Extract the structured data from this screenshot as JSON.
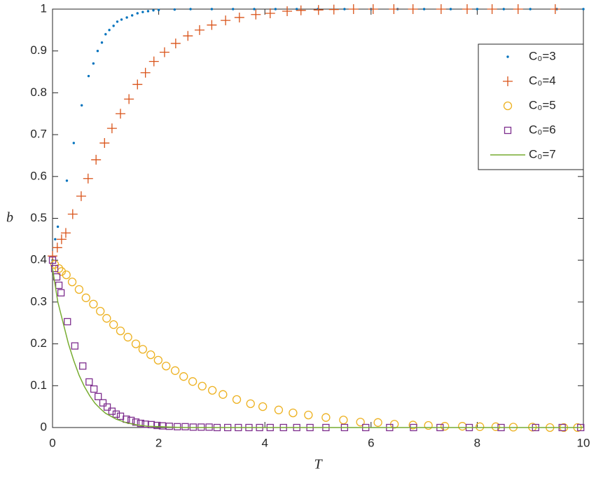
{
  "chart_data": {
    "type": "scatter",
    "xlabel": "T",
    "ylabel": "b",
    "xlim": [
      0,
      10
    ],
    "ylim": [
      0,
      1
    ],
    "xticks": [
      0,
      2,
      4,
      6,
      8,
      10
    ],
    "yticks": [
      0,
      0.1,
      0.2,
      0.3,
      0.4,
      0.5,
      0.6,
      0.7,
      0.8,
      0.9,
      1
    ],
    "legend": "upper-right",
    "series": [
      {
        "name": "C₀=3",
        "color": "#0072bd",
        "marker": "dot",
        "x": [
          0,
          0.05,
          0.1,
          0.27,
          0.4,
          0.55,
          0.68,
          0.77,
          0.85,
          0.93,
          1.0,
          1.07,
          1.15,
          1.22,
          1.3,
          1.4,
          1.5,
          1.6,
          1.7,
          1.8,
          1.9,
          2.0,
          2.3,
          2.6,
          3.0,
          3.4,
          3.8,
          4.2,
          4.6,
          5.0,
          5.5,
          6.0,
          6.5,
          7.0,
          7.5,
          8.0,
          8.5,
          9.0,
          9.5,
          10
        ],
        "values": [
          0.4,
          0.45,
          0.48,
          0.59,
          0.68,
          0.77,
          0.84,
          0.87,
          0.9,
          0.92,
          0.94,
          0.95,
          0.96,
          0.97,
          0.975,
          0.98,
          0.985,
          0.99,
          0.993,
          0.995,
          0.997,
          0.998,
          0.999,
          1,
          1,
          1,
          1,
          1,
          1,
          1,
          1,
          1,
          1,
          1,
          1,
          1,
          1,
          1,
          1,
          1
        ]
      },
      {
        "name": "C₀=4",
        "color": "#d95319",
        "marker": "plus",
        "x": [
          0,
          0.09,
          0.17,
          0.25,
          0.38,
          0.54,
          0.67,
          0.82,
          0.98,
          1.12,
          1.28,
          1.44,
          1.6,
          1.75,
          1.91,
          2.11,
          2.32,
          2.55,
          2.77,
          3.0,
          3.26,
          3.52,
          3.83,
          4.1,
          4.42,
          4.68,
          5.01,
          5.3,
          5.67,
          6.04,
          6.43,
          6.79,
          7.32,
          7.81,
          8.28,
          8.77,
          9.47
        ],
        "values": [
          0.41,
          0.43,
          0.45,
          0.465,
          0.51,
          0.553,
          0.595,
          0.64,
          0.68,
          0.715,
          0.75,
          0.785,
          0.82,
          0.848,
          0.875,
          0.897,
          0.918,
          0.936,
          0.95,
          0.962,
          0.973,
          0.98,
          0.987,
          0.99,
          0.995,
          0.997,
          0.998,
          0.999,
          1,
          1,
          1,
          1,
          1,
          1,
          1,
          1,
          1
        ]
      },
      {
        "name": "C₀=5",
        "color": "#edb120",
        "marker": "circle",
        "x": [
          0.04,
          0.12,
          0.17,
          0.26,
          0.37,
          0.5,
          0.63,
          0.77,
          0.9,
          1.02,
          1.15,
          1.28,
          1.42,
          1.57,
          1.7,
          1.85,
          1.99,
          2.14,
          2.31,
          2.47,
          2.64,
          2.82,
          3.01,
          3.21,
          3.47,
          3.73,
          3.96,
          4.26,
          4.53,
          4.82,
          5.15,
          5.48,
          5.8,
          6.13,
          6.44,
          6.79,
          7.08,
          7.39,
          7.72,
          8.05,
          8.35,
          8.68,
          9.04,
          9.37,
          9.63,
          9.89
        ],
        "values": [
          0.39,
          0.38,
          0.373,
          0.365,
          0.348,
          0.33,
          0.31,
          0.295,
          0.278,
          0.261,
          0.246,
          0.231,
          0.216,
          0.2,
          0.187,
          0.174,
          0.161,
          0.147,
          0.136,
          0.122,
          0.11,
          0.099,
          0.089,
          0.079,
          0.067,
          0.057,
          0.05,
          0.042,
          0.035,
          0.03,
          0.024,
          0.018,
          0.013,
          0.012,
          0.008,
          0.006,
          0.005,
          0.003,
          0.003,
          0.002,
          0.002,
          0.001,
          0.001,
          0,
          0,
          0
        ]
      },
      {
        "name": "C₀=6",
        "color": "#7e2f8e",
        "marker": "square",
        "x": [
          0,
          0.04,
          0.08,
          0.12,
          0.16,
          0.28,
          0.42,
          0.57,
          0.69,
          0.78,
          0.86,
          0.95,
          1.03,
          1.12,
          1.2,
          1.28,
          1.39,
          1.48,
          1.57,
          1.66,
          1.75,
          1.86,
          1.97,
          2.07,
          2.2,
          2.35,
          2.5,
          2.65,
          2.8,
          2.95,
          3.1,
          3.3,
          3.5,
          3.7,
          3.9,
          4.1,
          4.35,
          4.6,
          4.85,
          5.15,
          5.5,
          5.9,
          6.35,
          6.8,
          7.3,
          7.85,
          8.45,
          9.1,
          9.6,
          9.95
        ],
        "values": [
          0.4,
          0.38,
          0.36,
          0.34,
          0.322,
          0.253,
          0.195,
          0.147,
          0.109,
          0.092,
          0.074,
          0.059,
          0.049,
          0.039,
          0.032,
          0.027,
          0.02,
          0.017,
          0.013,
          0.01,
          0.008,
          0.007,
          0.005,
          0.004,
          0.003,
          0.002,
          0.002,
          0.001,
          0.001,
          0.001,
          0,
          0,
          0,
          0,
          0,
          0,
          0,
          0,
          0,
          0,
          0,
          0,
          0,
          0,
          0,
          0,
          0,
          0,
          0,
          0
        ]
      },
      {
        "name": "C₀=7",
        "color": "#77ac30",
        "marker": "line",
        "x": [
          0,
          0.1,
          0.2,
          0.3,
          0.4,
          0.5,
          0.6,
          0.7,
          0.8,
          0.9,
          1.0,
          1.2,
          1.4,
          1.6,
          1.8,
          2.0,
          2.5,
          3,
          4,
          5,
          6,
          7,
          8,
          9,
          10
        ],
        "values": [
          0.38,
          0.3,
          0.25,
          0.2,
          0.16,
          0.125,
          0.098,
          0.076,
          0.058,
          0.045,
          0.034,
          0.02,
          0.011,
          0.006,
          0.003,
          0.002,
          0,
          0,
          0,
          0,
          0,
          0,
          0,
          0,
          0
        ]
      }
    ]
  }
}
